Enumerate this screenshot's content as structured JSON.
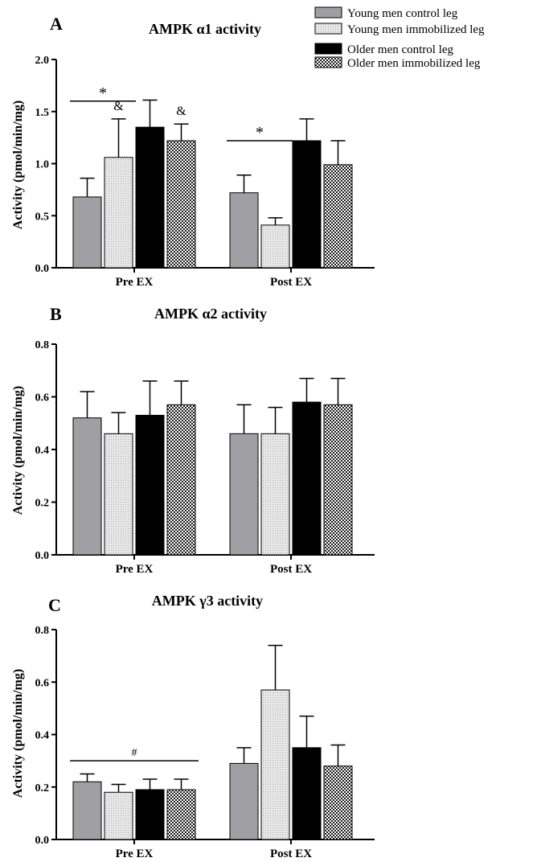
{
  "legend": {
    "entries": [
      {
        "label": "Young men control leg",
        "pattern": "solid-gray"
      },
      {
        "label": "Young men immobilized leg",
        "pattern": "dots-light"
      },
      {
        "label": "Older men control leg",
        "pattern": "solid-black"
      },
      {
        "label": "Older men immobilized leg",
        "pattern": "checker"
      }
    ]
  },
  "colors": {
    "gray": "#a0a0a4",
    "black": "#000000",
    "axis": "#000000"
  },
  "chart_data": [
    {
      "panel_letter": "A",
      "type": "bar",
      "title": "AMPK α1 activity",
      "ylabel": "Activity (pmol/min/mg)",
      "xlabel": "",
      "categories": [
        "Pre EX",
        "Post EX"
      ],
      "ylim": [
        0,
        2.0
      ],
      "yticks": [
        0.0,
        0.5,
        1.0,
        1.5,
        2.0
      ],
      "ytick_labels": [
        "0.0",
        "0.5",
        "1.0",
        "1.5",
        "2.0"
      ],
      "series": [
        {
          "name": "Young men control leg",
          "values": [
            0.68,
            0.72
          ],
          "errors": [
            0.18,
            0.17
          ]
        },
        {
          "name": "Young men immobilized leg",
          "values": [
            1.06,
            0.41
          ],
          "errors": [
            0.37,
            0.07
          ]
        },
        {
          "name": "Older men control leg",
          "values": [
            1.35,
            1.22
          ],
          "errors": [
            0.26,
            0.21
          ]
        },
        {
          "name": "Older men immobilized leg",
          "values": [
            1.22,
            0.99
          ],
          "errors": [
            0.16,
            0.23
          ]
        }
      ],
      "annotations": [
        {
          "symbol": "*",
          "category": 0,
          "from_series": 0,
          "to_series": 1,
          "level": 1.6
        },
        {
          "symbol": "&",
          "category": 0,
          "series": 1,
          "level": 1.5
        },
        {
          "symbol": "&",
          "category": 0,
          "series": 3,
          "level": 1.45
        },
        {
          "symbol": "*",
          "category": 1,
          "from_series": 0,
          "to_series": 1,
          "level": 1.22
        }
      ]
    },
    {
      "panel_letter": "B",
      "type": "bar",
      "title": "AMPK α2 activity",
      "ylabel": "Activity (pmol/min/mg)",
      "xlabel": "",
      "categories": [
        "Pre EX",
        "Post EX"
      ],
      "ylim": [
        0,
        0.8
      ],
      "yticks": [
        0.0,
        0.2,
        0.4,
        0.6,
        0.8
      ],
      "ytick_labels": [
        "0.0",
        "0.2",
        "0.4",
        "0.6",
        "0.8"
      ],
      "series": [
        {
          "name": "Young men control leg",
          "values": [
            0.52,
            0.46
          ],
          "errors": [
            0.1,
            0.11
          ]
        },
        {
          "name": "Young men immobilized leg",
          "values": [
            0.46,
            0.46
          ],
          "errors": [
            0.08,
            0.1
          ]
        },
        {
          "name": "Older men control leg",
          "values": [
            0.53,
            0.58
          ],
          "errors": [
            0.13,
            0.09
          ]
        },
        {
          "name": "Older men immobilized leg",
          "values": [
            0.57,
            0.57
          ],
          "errors": [
            0.09,
            0.1
          ]
        }
      ],
      "annotations": []
    },
    {
      "panel_letter": "C",
      "type": "bar",
      "title": "AMPK γ3 activity",
      "ylabel": "Activity (pmol/min/mg)",
      "xlabel": "",
      "categories": [
        "Pre EX",
        "Post EX"
      ],
      "ylim": [
        0,
        0.8
      ],
      "yticks": [
        0.0,
        0.2,
        0.4,
        0.6,
        0.8
      ],
      "ytick_labels": [
        "0.0",
        "0.2",
        "0.4",
        "0.6",
        "0.8"
      ],
      "series": [
        {
          "name": "Young men control leg",
          "values": [
            0.22,
            0.29
          ],
          "errors": [
            0.03,
            0.06
          ]
        },
        {
          "name": "Young men immobilized leg",
          "values": [
            0.18,
            0.57
          ],
          "errors": [
            0.03,
            0.17
          ]
        },
        {
          "name": "Older men control leg",
          "values": [
            0.19,
            0.35
          ],
          "errors": [
            0.04,
            0.12
          ]
        },
        {
          "name": "Older men immobilized leg",
          "values": [
            0.19,
            0.28
          ],
          "errors": [
            0.04,
            0.08
          ]
        }
      ],
      "annotations": [
        {
          "symbol": "#",
          "category": 0,
          "from_series": 0,
          "to_series": 3,
          "level": 0.3
        }
      ]
    }
  ]
}
